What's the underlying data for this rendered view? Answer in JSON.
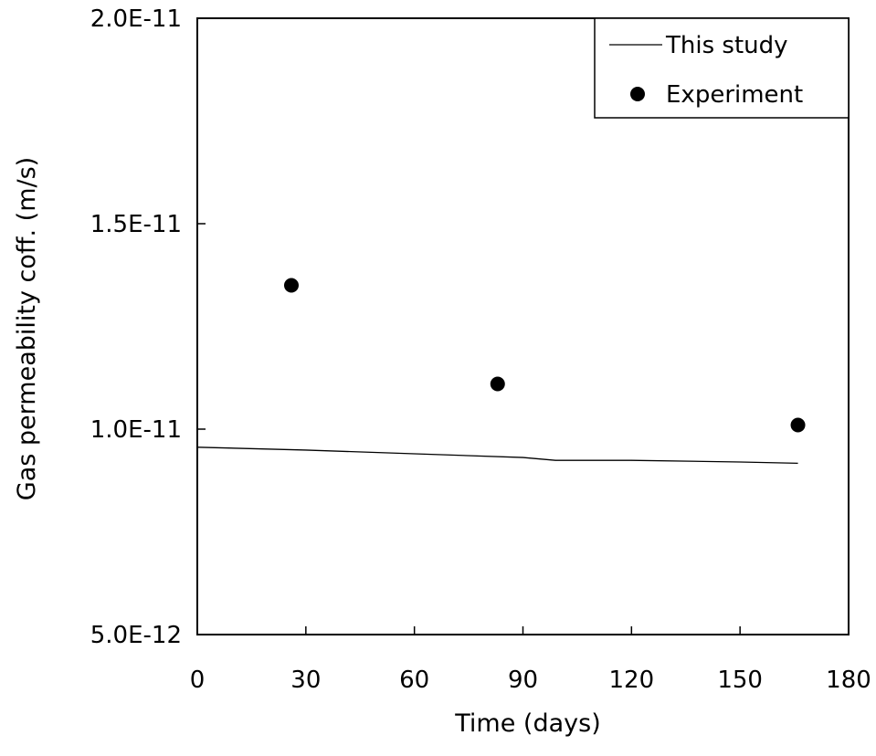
{
  "chart_data": {
    "type": "scatter",
    "title": "",
    "xlabel": "Time (days)",
    "ylabel": "Gas permeability coff. (m/s)",
    "xlim": [
      0,
      180
    ],
    "ylim": [
      5e-12,
      2e-11
    ],
    "x_ticks": [
      0,
      30,
      60,
      90,
      120,
      150,
      180
    ],
    "x_tick_labels": [
      "0",
      "30",
      "60",
      "90",
      "120",
      "150",
      "180"
    ],
    "y_ticks": [
      5e-12,
      1e-11,
      1.5e-11,
      2e-11
    ],
    "y_tick_labels": [
      "5.0E-12",
      "1.0E-11",
      "1.5E-11",
      "2.0E-11"
    ],
    "grid": false,
    "legend_position": "top-right",
    "series": [
      {
        "name": "This study",
        "kind": "line",
        "color": "#000000",
        "x": [
          0,
          30,
          60,
          90,
          99,
          120,
          150,
          166
        ],
        "y": [
          9.56e-12,
          9.49e-12,
          9.4e-12,
          9.31e-12,
          9.24e-12,
          9.24e-12,
          9.2e-12,
          9.17e-12
        ]
      },
      {
        "name": "Experiment",
        "kind": "scatter",
        "marker": "filled-circle",
        "color": "#000000",
        "x": [
          26,
          83,
          166
        ],
        "y": [
          1.35e-11,
          1.11e-11,
          1.01e-11
        ]
      }
    ]
  }
}
